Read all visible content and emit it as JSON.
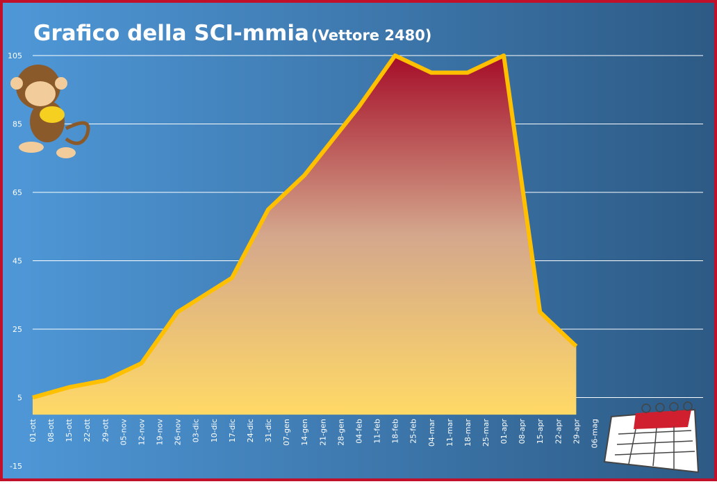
{
  "chart_data": {
    "type": "area",
    "title": "Grafico della SCI-mmia",
    "subtitle": "(Vettore 2480)",
    "categories": [
      "01-ott",
      "08-ott",
      "15-ott",
      "22-ott",
      "29-ott",
      "05-nov",
      "12-nov",
      "19-nov",
      "26-nov",
      "03-dic",
      "10-dic",
      "17-dic",
      "24-dic",
      "31-dic",
      "07-gen",
      "14-gen",
      "21-gen",
      "28-gen",
      "04-feb",
      "11-feb",
      "18-feb",
      "25-feb",
      "04-mar",
      "11-mar",
      "18-mar",
      "25-mar",
      "01-apr",
      "08-apr",
      "15-apr",
      "22-apr",
      "29-apr",
      "06-mag"
    ],
    "x": [
      "01-ott",
      "15-ott",
      "29-ott",
      "12-nov",
      "26-nov",
      "17-dic",
      "31-dic",
      "14-gen",
      "04-feb",
      "18-feb",
      "04-mar",
      "18-mar",
      "01-apr",
      "15-apr",
      "29-apr"
    ],
    "values": [
      5,
      8,
      10,
      15,
      30,
      40,
      60,
      70,
      90,
      105,
      100,
      100,
      105,
      30,
      20
    ],
    "color": "#ffc000",
    "ylim": [
      -15,
      105
    ],
    "yticks": [
      -15,
      5,
      25,
      45,
      65,
      85,
      105
    ],
    "grid": true
  }
}
